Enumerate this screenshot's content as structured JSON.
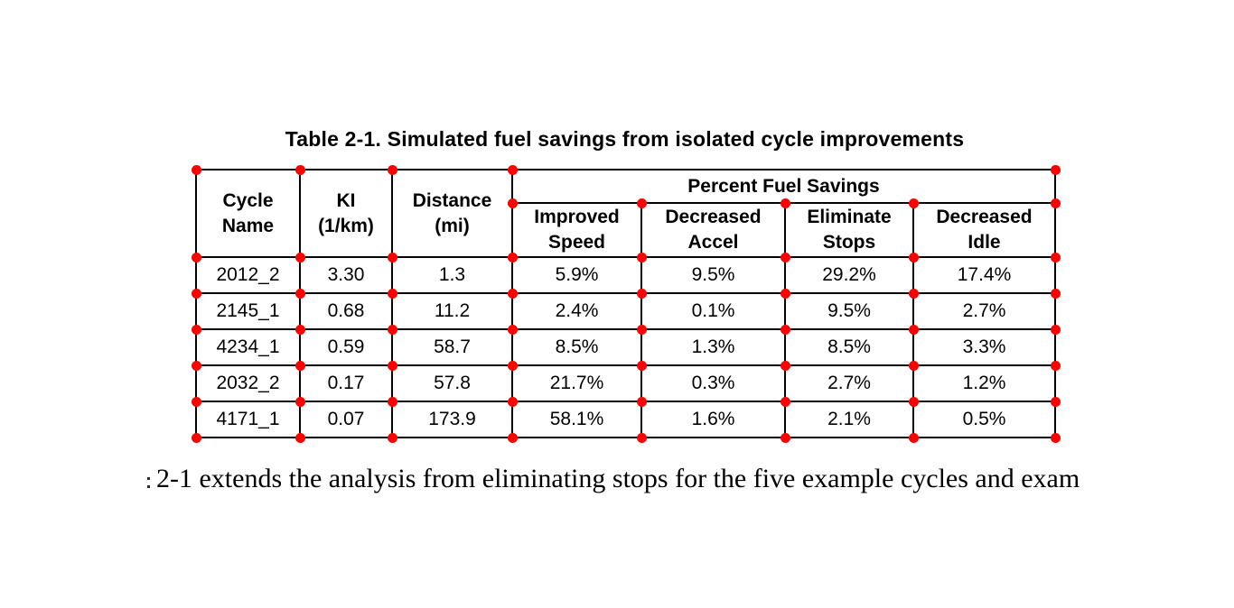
{
  "page": {
    "background_color": "#ffffff",
    "text_color": "#000000"
  },
  "annotation": {
    "dot_color": "#ff0000"
  },
  "caption": "Table 2-1. Simulated fuel savings from isolated cycle improvements",
  "table": {
    "columns": {
      "cycle_name": "Cycle\nName",
      "ki": "KI\n(1/km)",
      "distance": "Distance\n(mi)",
      "group": "Percent Fuel Savings",
      "improved_speed": "Improved\nSpeed",
      "decreased_accel": "Decreased\nAccel",
      "eliminate_stops": "Eliminate\nStops",
      "decreased_idle": "Decreased\nIdle"
    },
    "rows": [
      {
        "cycle_name": "2012_2",
        "ki": "3.30",
        "distance": "1.3",
        "improved_speed": "5.9%",
        "decreased_accel": "9.5%",
        "eliminate_stops": "29.2%",
        "decreased_idle": "17.4%"
      },
      {
        "cycle_name": "2145_1",
        "ki": "0.68",
        "distance": "11.2",
        "improved_speed": "2.4%",
        "decreased_accel": "0.1%",
        "eliminate_stops": "9.5%",
        "decreased_idle": "2.7%"
      },
      {
        "cycle_name": "4234_1",
        "ki": "0.59",
        "distance": "58.7",
        "improved_speed": "8.5%",
        "decreased_accel": "1.3%",
        "eliminate_stops": "8.5%",
        "decreased_idle": "3.3%"
      },
      {
        "cycle_name": "2032_2",
        "ki": "0.17",
        "distance": "57.8",
        "improved_speed": "21.7%",
        "decreased_accel": "0.3%",
        "eliminate_stops": "2.7%",
        "decreased_idle": "1.2%"
      },
      {
        "cycle_name": "4171_1",
        "ki": "0.07",
        "distance": "173.9",
        "improved_speed": "58.1%",
        "decreased_accel": "1.6%",
        "eliminate_stops": "2.1%",
        "decreased_idle": "0.5%"
      }
    ]
  },
  "body_text": {
    "visible_line": "2-1 extends the analysis from eliminating stops for the five example cycles and exam"
  }
}
